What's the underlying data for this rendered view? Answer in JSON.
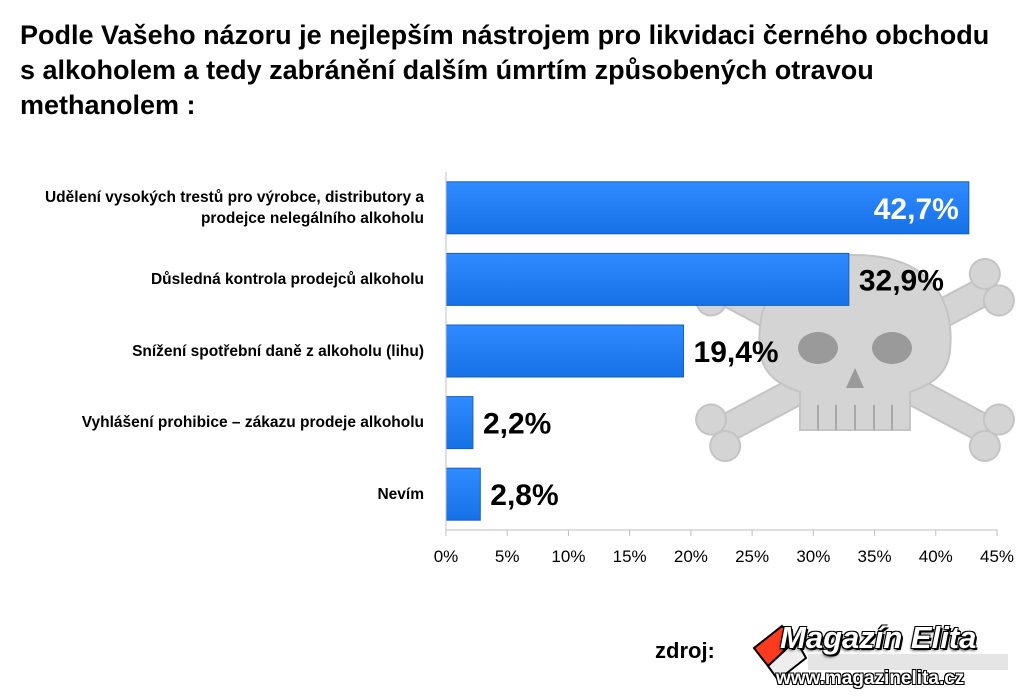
{
  "title": "Podle Vašeho názoru je nejlepším nástrojem pro likvidaci černého obchodu s alkoholem a tedy zabránění dalším úmrtím způsobených otravou methanolem :",
  "source_label": "zdroj:",
  "logo": {
    "title": "Magazín Elita",
    "url": "www.magazinelita.cz"
  },
  "watermark_icon": "skull-and-crossbones-icon",
  "colors": {
    "bar": "#1a7bef",
    "bar_edge": "#1460c0",
    "axis": "#bfbfbf",
    "watermark": "#cfcfcf"
  },
  "chart_data": {
    "type": "bar",
    "orientation": "horizontal",
    "title": "Podle Vašeho názoru je nejlepším nástrojem pro likvidaci černého obchodu s alkoholem a tedy zabránění dalším úmrtím způsobených otravou methanolem :",
    "categories": [
      "Udělení vysokých trestů pro výrobce, distributory a prodejce nelegálního alkoholu",
      "Důsledná kontrola prodejců alkoholu",
      "Snížení spotřební daně z alkoholu (lihu)",
      "Vyhlášení prohibice – zákazu prodeje alkoholu",
      "Nevím"
    ],
    "values": [
      42.7,
      32.9,
      19.4,
      2.2,
      2.8
    ],
    "value_labels": [
      "42,7%",
      "32,9%",
      "19,4%",
      "2,2%",
      "2,8%"
    ],
    "xlim": [
      0,
      45
    ],
    "xticks": [
      0,
      5,
      10,
      15,
      20,
      25,
      30,
      35,
      40,
      45
    ],
    "xtick_labels": [
      "0%",
      "5%",
      "10%",
      "15%",
      "20%",
      "25%",
      "30%",
      "35%",
      "40%",
      "45%"
    ],
    "xlabel": "",
    "ylabel": "",
    "grid": false,
    "legend": "none"
  }
}
